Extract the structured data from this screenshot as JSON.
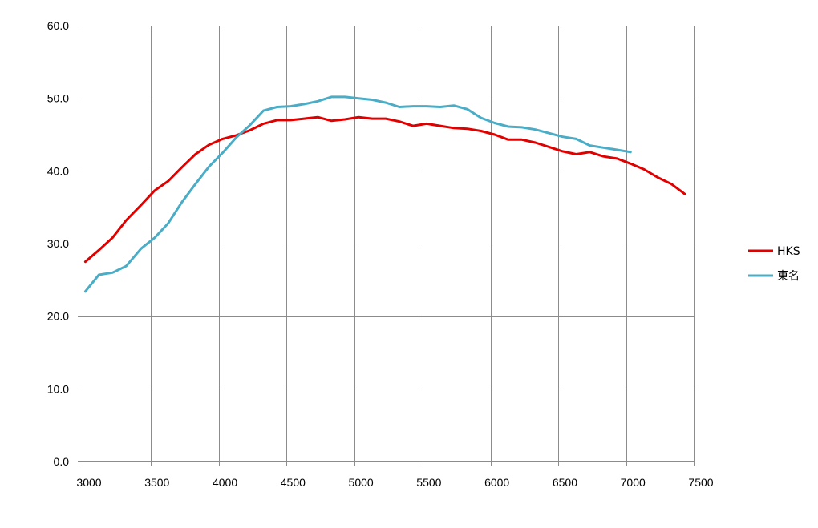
{
  "chart_data": {
    "type": "line",
    "title": "",
    "xlabel": "",
    "ylabel": "",
    "xlim": [
      3000,
      7500
    ],
    "ylim": [
      0,
      60
    ],
    "x_ticks": [
      "3000",
      "3500",
      "4000",
      "4500",
      "5000",
      "5500",
      "6000",
      "6500",
      "7000",
      "7500"
    ],
    "y_ticks": [
      "0.0",
      "10.0",
      "20.0",
      "30.0",
      "40.0",
      "50.0",
      "60.0"
    ],
    "grid": true,
    "legend_position": "right",
    "series": [
      {
        "name": "HKS",
        "color": "#e00000",
        "points": [
          [
            3020,
            27.5
          ],
          [
            3120,
            29.1
          ],
          [
            3220,
            30.8
          ],
          [
            3320,
            33.2
          ],
          [
            3430,
            35.3
          ],
          [
            3530,
            37.3
          ],
          [
            3630,
            38.6
          ],
          [
            3730,
            40.5
          ],
          [
            3830,
            42.3
          ],
          [
            3930,
            43.6
          ],
          [
            4030,
            44.4
          ],
          [
            4130,
            44.9
          ],
          [
            4230,
            45.6
          ],
          [
            4330,
            46.5
          ],
          [
            4430,
            47.0
          ],
          [
            4530,
            47.0
          ],
          [
            4630,
            47.2
          ],
          [
            4730,
            47.4
          ],
          [
            4830,
            46.9
          ],
          [
            4930,
            47.1
          ],
          [
            5030,
            47.4
          ],
          [
            5130,
            47.2
          ],
          [
            5230,
            47.2
          ],
          [
            5330,
            46.8
          ],
          [
            5430,
            46.2
          ],
          [
            5530,
            46.5
          ],
          [
            5630,
            46.2
          ],
          [
            5730,
            45.9
          ],
          [
            5830,
            45.8
          ],
          [
            5930,
            45.5
          ],
          [
            6030,
            45.0
          ],
          [
            6130,
            44.3
          ],
          [
            6230,
            44.3
          ],
          [
            6330,
            43.9
          ],
          [
            6430,
            43.3
          ],
          [
            6530,
            42.7
          ],
          [
            6630,
            42.3
          ],
          [
            6730,
            42.6
          ],
          [
            6830,
            42.0
          ],
          [
            6930,
            41.7
          ],
          [
            7030,
            41.0
          ],
          [
            7130,
            40.2
          ],
          [
            7230,
            39.1
          ],
          [
            7330,
            38.2
          ],
          [
            7430,
            36.8
          ]
        ]
      },
      {
        "name": "東名",
        "color": "#4bacc6",
        "points": [
          [
            3020,
            23.4
          ],
          [
            3120,
            25.7
          ],
          [
            3220,
            26.0
          ],
          [
            3320,
            26.9
          ],
          [
            3430,
            29.3
          ],
          [
            3530,
            30.8
          ],
          [
            3630,
            32.8
          ],
          [
            3730,
            35.7
          ],
          [
            3830,
            38.2
          ],
          [
            3930,
            40.6
          ],
          [
            4030,
            42.5
          ],
          [
            4130,
            44.6
          ],
          [
            4230,
            46.3
          ],
          [
            4330,
            48.3
          ],
          [
            4430,
            48.8
          ],
          [
            4530,
            48.9
          ],
          [
            4630,
            49.2
          ],
          [
            4730,
            49.6
          ],
          [
            4830,
            50.2
          ],
          [
            4930,
            50.2
          ],
          [
            5030,
            50.0
          ],
          [
            5130,
            49.8
          ],
          [
            5230,
            49.4
          ],
          [
            5330,
            48.8
          ],
          [
            5430,
            48.9
          ],
          [
            5530,
            48.9
          ],
          [
            5630,
            48.8
          ],
          [
            5730,
            49.0
          ],
          [
            5830,
            48.5
          ],
          [
            5930,
            47.3
          ],
          [
            6030,
            46.6
          ],
          [
            6130,
            46.1
          ],
          [
            6230,
            46.0
          ],
          [
            6330,
            45.7
          ],
          [
            6430,
            45.2
          ],
          [
            6530,
            44.7
          ],
          [
            6630,
            44.4
          ],
          [
            6730,
            43.5
          ],
          [
            6830,
            43.2
          ],
          [
            6930,
            42.9
          ],
          [
            7030,
            42.6
          ]
        ]
      }
    ]
  }
}
